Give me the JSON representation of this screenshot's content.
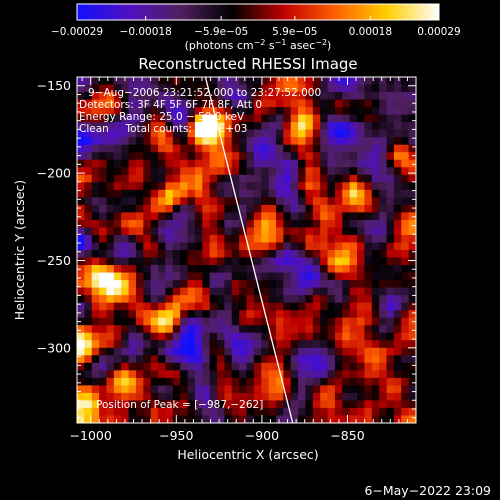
{
  "chart_data": {
    "type": "heatmap",
    "title": "Reconstructed RHESSI Image",
    "xlabel": "Heliocentric X (arcsec)",
    "ylabel": "Heliocentric Y (arcsec)",
    "xlim": [
      -1008,
      -810
    ],
    "ylim": [
      -343,
      -145
    ],
    "x_ticks": [
      -1000,
      -950,
      -900,
      -850
    ],
    "x_tick_labels": [
      "−1000",
      "−950",
      "−900",
      "−850"
    ],
    "y_ticks": [
      -150,
      -200,
      -250,
      -300
    ],
    "y_tick_labels": [
      "−150",
      "−200",
      "−250",
      "−300"
    ],
    "colorbar": {
      "range": [
        -0.00029,
        0.00029
      ],
      "ticks": [
        -0.00029,
        -0.00018,
        -5.9e-05,
        5.9e-05,
        0.00018,
        0.00029
      ],
      "tick_labels": [
        "−0.00029",
        "−0.00018",
        "−5.9e−05",
        "5.9e−05",
        "0.00018",
        "0.00029"
      ],
      "stops": [
        "#1010ff",
        "#5010c0",
        "#502060",
        "#000000",
        "#c00000",
        "#ff6000",
        "#ffd000",
        "#ffffff"
      ]
    },
    "info": {
      "time_range": "9−Aug−2006 23:21:52.000 to 23:27:52.000",
      "detectors": "Detectors: 3F 4F 5F 6F 7F 8F, Att 0",
      "energy": "Energy Range: 25.0 − 50.0 keV",
      "clean": "Clean     Total counts: 9.84E+03"
    },
    "peak_label": "Position of Peak = [−987,−262]",
    "peak": [
      -987,
      -262
    ],
    "limb_line": [
      [
        -933,
        -145
      ],
      [
        -882,
        -343
      ]
    ],
    "seed": 7
  },
  "footer": {
    "timestamp": "6−May−2022 23:09"
  }
}
